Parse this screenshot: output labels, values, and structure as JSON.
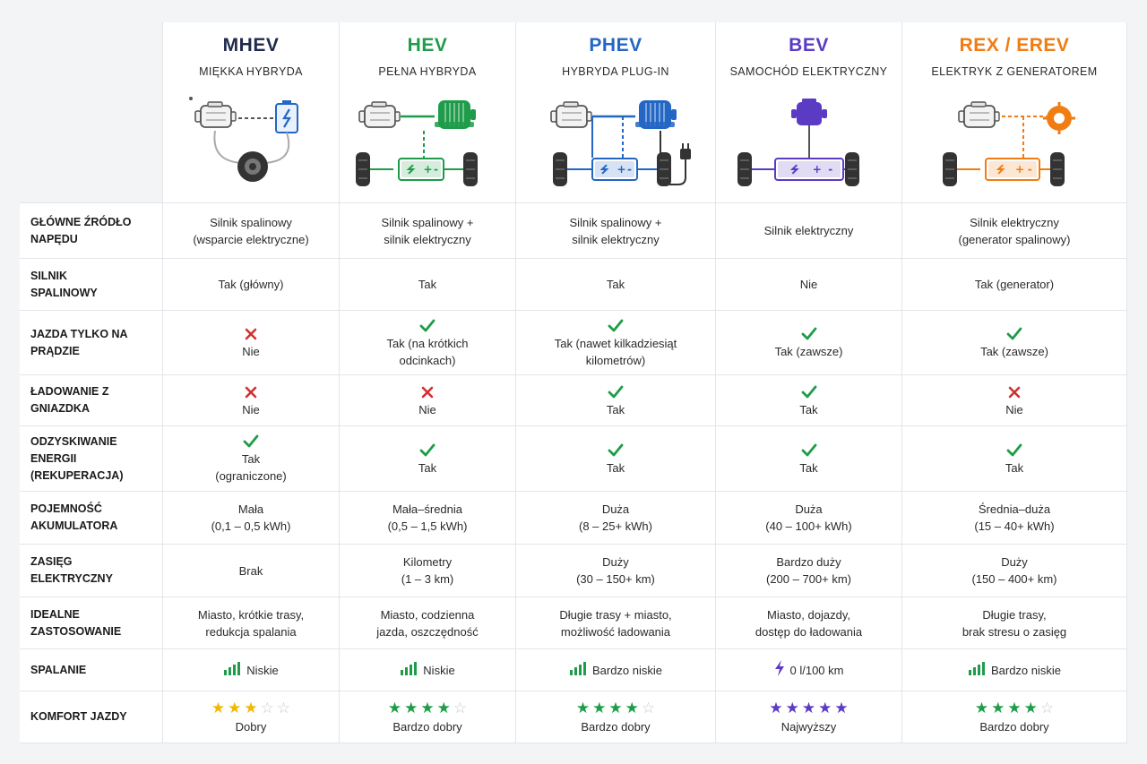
{
  "columns": [
    {
      "name": "MHEV",
      "subtitle": "MIĘKKA HYBRYDA",
      "color": "#1f2a4d",
      "icon": "mhev-drivetrain-icon"
    },
    {
      "name": "HEV",
      "subtitle": "PEŁNA HYBRYDA",
      "color": "#1e9c4a",
      "icon": "hev-drivetrain-icon"
    },
    {
      "name": "PHEV",
      "subtitle": "HYBRYDA PLUG-IN",
      "color": "#2466c4",
      "icon": "phev-drivetrain-icon"
    },
    {
      "name": "BEV",
      "subtitle": "SAMOCHÓD ELEKTRYCZNY",
      "color": "#5b3bc4",
      "icon": "bev-drivetrain-icon"
    },
    {
      "name": "REX / EREV",
      "subtitle": "ELEKTRYK Z GENERATOREM",
      "color": "#f07c12",
      "icon": "rex-drivetrain-icon"
    }
  ],
  "rows": [
    {
      "label": "GŁÓWNE ŹRÓDŁO\nNAPĘDU",
      "cells": [
        {
          "text": "Silnik spalinowy\n(wsparcie elektryczne)"
        },
        {
          "text": "Silnik spalinowy +\nsilnik elektryczny"
        },
        {
          "text": "Silnik spalinowy +\nsilnik elektryczny"
        },
        {
          "text": "Silnik elektryczny"
        },
        {
          "text": "Silnik elektryczny\n(generator spalinowy)"
        }
      ]
    },
    {
      "label": "SILNIK\nSPALINOWY",
      "cells": [
        {
          "text": "Tak (główny)"
        },
        {
          "text": "Tak"
        },
        {
          "text": "Tak"
        },
        {
          "text": "Nie"
        },
        {
          "text": "Tak (generator)"
        }
      ]
    },
    {
      "label": "JAZDA TYLKO NA\nPRĄDZIE",
      "cells": [
        {
          "mark": "cross",
          "text": "Nie"
        },
        {
          "mark": "check",
          "text": "Tak (na krótkich\nodcinkach)"
        },
        {
          "mark": "check",
          "text": "Tak (nawet kilkadziesiąt\nkilometrów)"
        },
        {
          "mark": "check",
          "text": "Tak (zawsze)"
        },
        {
          "mark": "check",
          "text": "Tak (zawsze)"
        }
      ]
    },
    {
      "label": "ŁADOWANIE Z\nGNIAZDKA",
      "cells": [
        {
          "mark": "cross",
          "text": "Nie"
        },
        {
          "mark": "cross",
          "text": "Nie"
        },
        {
          "mark": "check",
          "text": "Tak"
        },
        {
          "mark": "check",
          "text": "Tak"
        },
        {
          "mark": "cross",
          "text": "Nie"
        }
      ]
    },
    {
      "label": "ODZYSKIWANIE\nENERGII (REKUPERACJA)",
      "cells": [
        {
          "mark": "check",
          "text": "Tak\n(ograniczone)"
        },
        {
          "mark": "check",
          "text": "Tak"
        },
        {
          "mark": "check",
          "text": "Tak"
        },
        {
          "mark": "check",
          "text": "Tak"
        },
        {
          "mark": "check",
          "text": "Tak"
        }
      ]
    },
    {
      "label": "POJEMNOŚĆ\nAKUMULATORA",
      "cells": [
        {
          "text": "Mała\n(0,1 – 0,5 kWh)"
        },
        {
          "text": "Mała–średnia\n(0,5 – 1,5 kWh)"
        },
        {
          "text": "Duża\n(8 – 25+ kWh)"
        },
        {
          "text": "Duża\n(40 – 100+ kWh)"
        },
        {
          "text": "Średnia–duża\n(15 – 40+ kWh)"
        }
      ]
    },
    {
      "label": "ZASIĘG ELEKTRYCZNY",
      "cells": [
        {
          "text": "Brak"
        },
        {
          "text": "Kilometry\n(1 – 3 km)"
        },
        {
          "text": "Duży\n(30 – 150+ km)"
        },
        {
          "text": "Bardzo duży\n(200 – 700+ km)"
        },
        {
          "text": "Duży\n(150 – 400+ km)"
        }
      ]
    },
    {
      "label": "IDEALNE\nZASTOSOWANIE",
      "cells": [
        {
          "text": "Miasto, krótkie trasy,\nredukcja spalania"
        },
        {
          "text": "Miasto, codzienna\njazda, oszczędność"
        },
        {
          "text": "Długie trasy + miasto,\nmożliwość ładowania"
        },
        {
          "text": "Miasto, dojazdy,\ndostęp do ładowania"
        },
        {
          "text": "Długie trasy,\nbrak stresu o zasięg"
        }
      ]
    },
    {
      "label": "SPALANIE",
      "cells": [
        {
          "icon": "signal-bars-icon",
          "text": "Niskie"
        },
        {
          "icon": "signal-bars-icon",
          "text": "Niskie"
        },
        {
          "icon": "signal-bars-icon",
          "text": "Bardzo niskie"
        },
        {
          "icon": "lightning-icon",
          "text": "0 l/100 km"
        },
        {
          "icon": "signal-bars-icon",
          "text": "Bardzo niskie"
        }
      ]
    },
    {
      "label": "KOMFORT JAZDY",
      "cells": [
        {
          "stars": 3,
          "star_color": "#f2b705",
          "text": "Dobry"
        },
        {
          "stars": 4,
          "star_color": "#1e9c4a",
          "text": "Bardzo dobry"
        },
        {
          "stars": 4,
          "star_color": "#1e9c4a",
          "text": "Bardzo dobry"
        },
        {
          "stars": 5,
          "star_color": "#5b3bc4",
          "text": "Najwyższy"
        },
        {
          "stars": 4,
          "star_color": "#1e9c4a",
          "text": "Bardzo dobry"
        }
      ]
    }
  ],
  "colors": {
    "check": "#1e9c4a",
    "cross": "#d32f2f",
    "star_empty": "#c9c9c9",
    "signal": "#1e9c4a",
    "lightning": "#5b3bc4"
  },
  "stars_max": 5
}
